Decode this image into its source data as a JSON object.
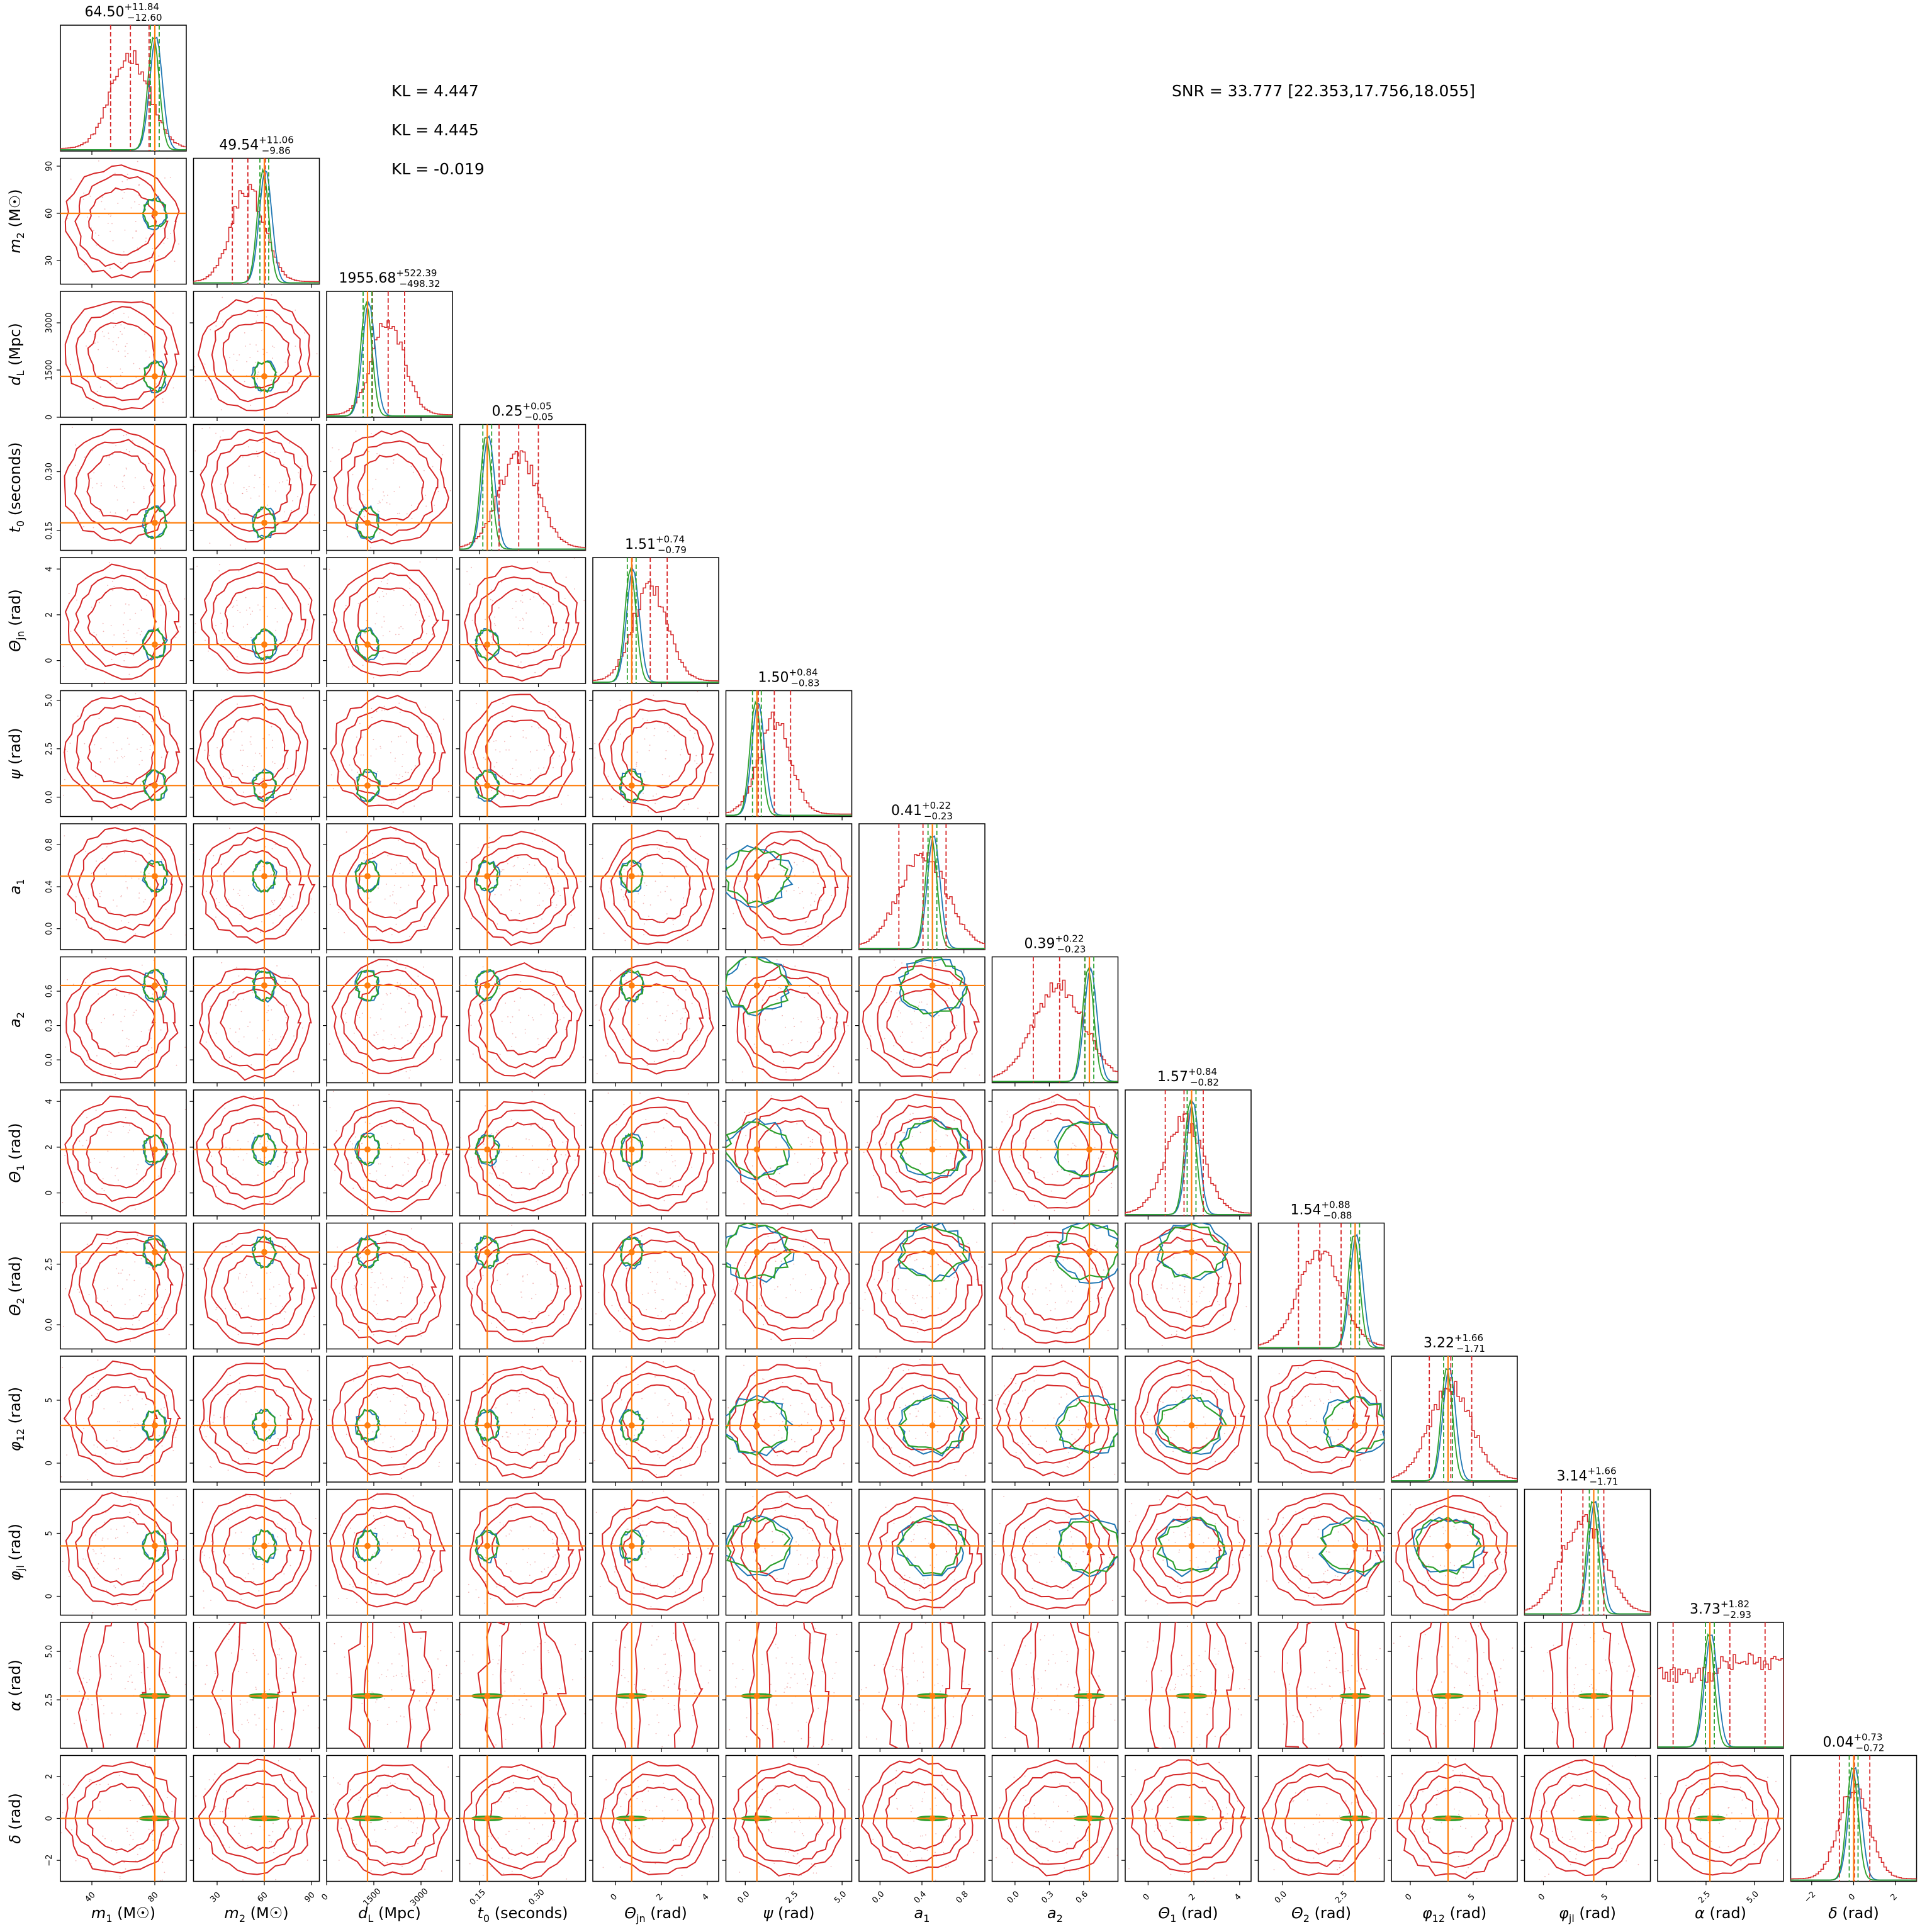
{
  "chart_data": {
    "type": "corner",
    "snr_label": "SNR = 33.777 [22.353,17.756,18.055]",
    "kl_values": [
      "KL = 4.447",
      "KL = 4.445",
      "KL = -0.019"
    ],
    "truth_color": "#ff7f0e",
    "series": [
      {
        "color": "#d62728"
      },
      {
        "color": "#1f77b4"
      },
      {
        "color": "#2ca02c"
      }
    ],
    "parameters": [
      {
        "label": "m₁ (M☉)",
        "math": {
          "b": "m",
          "s": "1",
          "u": "(M☉)"
        },
        "title": {
          "m": "64.50",
          "p": "+11.84",
          "n": "−12.60"
        },
        "range": [
          20,
          100
        ],
        "ticks": [
          "40",
          "80"
        ],
        "tickvals": [
          40,
          80
        ],
        "truth": 80
      },
      {
        "label": "m₂ (M☉)",
        "math": {
          "b": "m",
          "s": "2",
          "u": "(M☉)"
        },
        "title": {
          "m": "49.54",
          "p": "+11.06",
          "n": "−9.86"
        },
        "range": [
          15,
          95
        ],
        "ticks": [
          "30",
          "60",
          "90"
        ],
        "tickvals": [
          30,
          60,
          90
        ],
        "truth": 60
      },
      {
        "label": "d_L (Mpc)",
        "math": {
          "b": "d",
          "s": "L",
          "u": "(Mpc)"
        },
        "title": {
          "m": "1955.68",
          "p": "+522.39",
          "n": "−498.32"
        },
        "range": [
          0,
          4000
        ],
        "ticks": [
          "0",
          "1500",
          "3000"
        ],
        "tickvals": [
          0,
          1500,
          3000
        ],
        "truth": 1300
      },
      {
        "label": "t₀ (seconds)",
        "math": {
          "b": "t",
          "s": "0",
          "u": "(seconds)"
        },
        "title": {
          "m": "0.25",
          "p": "+0.05",
          "n": "−0.05"
        },
        "range": [
          0.1,
          0.42
        ],
        "ticks": [
          "0.15",
          "0.30"
        ],
        "tickvals": [
          0.15,
          0.3
        ],
        "truth": 0.17
      },
      {
        "label": "Θ_jn (rad)",
        "math": {
          "b": "Θ",
          "s": "jn",
          "u": "(rad)"
        },
        "title": {
          "m": "1.51",
          "p": "+0.74",
          "n": "−0.79"
        },
        "range": [
          -1,
          4.5
        ],
        "ticks": [
          "0",
          "2",
          "4"
        ],
        "tickvals": [
          0,
          2,
          4
        ],
        "truth": 0.7
      },
      {
        "label": "ψ (rad)",
        "math": {
          "b": "ψ",
          "s": "",
          "u": "(rad)"
        },
        "title": {
          "m": "1.50",
          "p": "+0.84",
          "n": "−0.83"
        },
        "range": [
          -1,
          5.5
        ],
        "ticks": [
          "0.0",
          "2.5",
          "5.0"
        ],
        "tickvals": [
          0,
          2.5,
          5
        ],
        "truth": 0.6
      },
      {
        "label": "a₁",
        "math": {
          "b": "a",
          "s": "1",
          "u": ""
        },
        "title": {
          "m": "0.41",
          "p": "+0.22",
          "n": "−0.23"
        },
        "range": [
          -0.2,
          1.0
        ],
        "ticks": [
          "0.0",
          "0.4",
          "0.8"
        ],
        "tickvals": [
          0,
          0.4,
          0.8
        ],
        "truth": 0.5
      },
      {
        "label": "a₂",
        "math": {
          "b": "a",
          "s": "2",
          "u": ""
        },
        "title": {
          "m": "0.39",
          "p": "+0.22",
          "n": "−0.23"
        },
        "range": [
          -0.2,
          0.9
        ],
        "ticks": [
          "0.0",
          "0.3",
          "0.6"
        ],
        "tickvals": [
          0,
          0.3,
          0.6
        ],
        "truth": 0.65
      },
      {
        "label": "Θ₁ (rad)",
        "math": {
          "b": "Θ",
          "s": "1",
          "u": "(rad)"
        },
        "title": {
          "m": "1.57",
          "p": "+0.84",
          "n": "−0.82"
        },
        "range": [
          -1,
          4.5
        ],
        "ticks": [
          "0",
          "2",
          "4"
        ],
        "tickvals": [
          0,
          2,
          4
        ],
        "truth": 1.9
      },
      {
        "label": "Θ₂ (rad)",
        "math": {
          "b": "Θ",
          "s": "2",
          "u": "(rad)"
        },
        "title": {
          "m": "1.54",
          "p": "+0.88",
          "n": "−0.88"
        },
        "range": [
          -1,
          4.2
        ],
        "ticks": [
          "0.0",
          "2.5"
        ],
        "tickvals": [
          0,
          2.5
        ],
        "truth": 3.0
      },
      {
        "label": "φ₁₂ (rad)",
        "math": {
          "b": "φ",
          "s": "12",
          "u": "(rad)"
        },
        "title": {
          "m": "3.22",
          "p": "+1.66",
          "n": "−1.71"
        },
        "range": [
          -1.5,
          8.5
        ],
        "ticks": [
          "0",
          "5"
        ],
        "tickvals": [
          0,
          5
        ],
        "truth": 3.0
      },
      {
        "label": "φ_jl (rad)",
        "math": {
          "b": "φ",
          "s": "jl",
          "u": "(rad)"
        },
        "title": {
          "m": "3.14",
          "p": "+1.66",
          "n": "−1.71"
        },
        "range": [
          -1.5,
          8.5
        ],
        "ticks": [
          "0",
          "5"
        ],
        "tickvals": [
          0,
          5
        ],
        "truth": 4.0
      },
      {
        "label": "α (rad)",
        "math": {
          "b": "α",
          "s": "",
          "u": "(rad)"
        },
        "title": {
          "m": "3.73",
          "p": "+1.82",
          "n": "−2.93"
        },
        "range": [
          0,
          6.5
        ],
        "ticks": [
          "2.5",
          "5.0"
        ],
        "tickvals": [
          2.5,
          5.0
        ],
        "truth": 2.7
      },
      {
        "label": "δ (rad)",
        "math": {
          "b": "δ",
          "s": "",
          "u": "(rad)"
        },
        "title": {
          "m": "0.04",
          "p": "+0.73",
          "n": "−0.72"
        },
        "range": [
          -3,
          3
        ],
        "ticks": [
          "−2",
          "0",
          "2"
        ],
        "tickvals": [
          -2,
          0,
          2
        ],
        "truth": 0.0
      }
    ]
  }
}
